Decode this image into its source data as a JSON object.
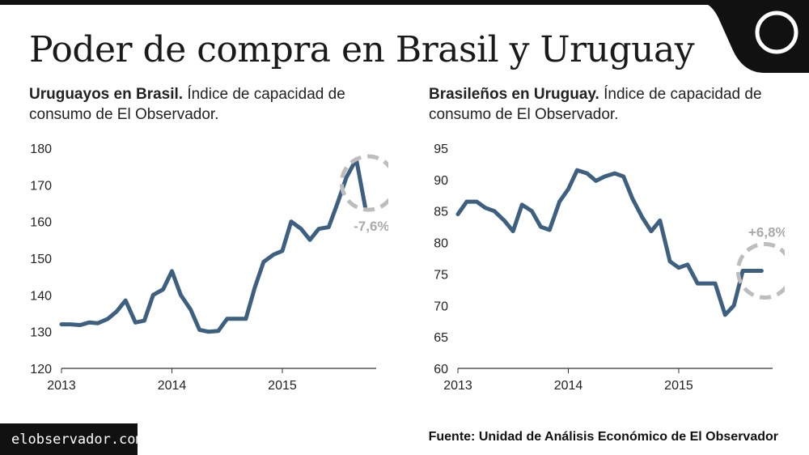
{
  "title": "Poder de compra en Brasil y Uruguay",
  "footer_url": "elobservador.com.uy",
  "source": "Fuente: Unidad de Análisis Económico de El Observador",
  "colors": {
    "line": "#3d5f80",
    "circle": "#bdbdbd",
    "change_text": "#aaaaaa",
    "axis": "#333333",
    "black": "#111111"
  },
  "icons": {
    "logo": "circle-logo-icon"
  },
  "chart_data": [
    {
      "type": "line",
      "subtitle_bold": "Uruguayos en Brasil.",
      "subtitle_rest": " Índice de capacidad de consumo de El Observador.",
      "ylim": [
        120,
        180
      ],
      "yticks": [
        "120",
        "130",
        "140",
        "150",
        "160",
        "170",
        "180"
      ],
      "xlim": [
        2013,
        2015.85
      ],
      "xticks": [
        {
          "value": 2013,
          "label": "2013"
        },
        {
          "value": 2014,
          "label": "2014"
        },
        {
          "value": 2015,
          "label": "2015"
        }
      ],
      "change_label": "-7,6%",
      "x": [
        2013.0,
        2013.08,
        2013.17,
        2013.25,
        2013.33,
        2013.42,
        2013.5,
        2013.58,
        2013.67,
        2013.75,
        2013.83,
        2013.92,
        2014.0,
        2014.08,
        2014.17,
        2014.25,
        2014.33,
        2014.42,
        2014.5,
        2014.58,
        2014.67,
        2014.75,
        2014.83,
        2014.92,
        2015.0,
        2015.08,
        2015.17,
        2015.25,
        2015.33,
        2015.42,
        2015.5,
        2015.58,
        2015.67,
        2015.75
      ],
      "y": [
        132,
        132,
        131.8,
        132.5,
        132.3,
        133.5,
        135.5,
        138.5,
        132.5,
        133,
        140,
        141.5,
        146.5,
        140,
        136,
        130.5,
        130,
        130.2,
        133.5,
        133.5,
        133.5,
        142,
        149,
        151,
        152,
        160,
        158,
        155,
        158,
        158.5,
        165,
        172,
        177,
        164
      ]
    },
    {
      "type": "line",
      "subtitle_bold": "Brasileños en Uruguay.",
      "subtitle_rest": " Índice de capacidad de consumo de El Observador.",
      "ylim": [
        60,
        95
      ],
      "yticks": [
        "60",
        "65",
        "70",
        "75",
        "80",
        "85",
        "90",
        "95"
      ],
      "xlim": [
        2013,
        2015.85
      ],
      "xticks": [
        {
          "value": 2013,
          "label": "2013"
        },
        {
          "value": 2014,
          "label": "2014"
        },
        {
          "value": 2015,
          "label": "2015"
        }
      ],
      "change_label": "+6,8%",
      "x": [
        2013.0,
        2013.08,
        2013.17,
        2013.25,
        2013.33,
        2013.42,
        2013.5,
        2013.58,
        2013.67,
        2013.75,
        2013.83,
        2013.92,
        2014.0,
        2014.08,
        2014.17,
        2014.25,
        2014.33,
        2014.42,
        2014.5,
        2014.58,
        2014.67,
        2014.75,
        2014.83,
        2014.92,
        2015.0,
        2015.08,
        2015.17,
        2015.25,
        2015.33,
        2015.42,
        2015.5,
        2015.58,
        2015.67,
        2015.75
      ],
      "y": [
        84.5,
        86.5,
        86.5,
        85.5,
        85,
        83.5,
        81.8,
        86,
        85,
        82.5,
        82,
        86.5,
        88.5,
        91.5,
        91,
        89.8,
        90.5,
        91,
        90.5,
        87,
        84,
        81.8,
        83.5,
        77,
        76,
        76.5,
        73.5,
        73.5,
        73.5,
        68.5,
        70,
        75.5,
        75.5,
        75.5
      ]
    }
  ]
}
